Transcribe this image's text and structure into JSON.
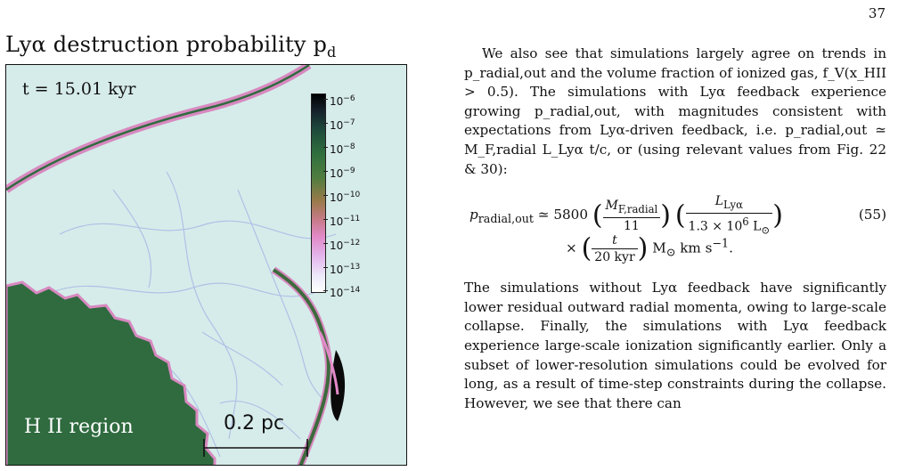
{
  "page": {
    "number": "37"
  },
  "figure": {
    "title": "Lyα destruction probability p",
    "title_subscript": "d",
    "time_label": "t = 15.01 kyr",
    "region_label": "H II region",
    "scale_bar_label": "0.2 pc",
    "colorbar": {
      "base": "10",
      "exponents": [
        "−6",
        "−7",
        "−8",
        "−9",
        "−10",
        "−11",
        "−12",
        "−13",
        "−14"
      ]
    },
    "colors": {
      "background": "#d6ecea",
      "hii_region": "#2f6b3f",
      "shell_pink": "#d889c0",
      "filaments": "#a7b6e6",
      "dense_clump": "#0a0a0a"
    }
  },
  "text": {
    "para1": "We also see that simulations largely agree on trends in p_radial,out and the volume fraction of ionized gas, f_V(x_HII > 0.5). The simulations with Lyα feedback experience growing p_radial,out, with magnitudes consistent with expectations from Lyα-driven feedback, i.e. p_radial,out ≃ M_F,radial L_Lyα t/c, or (using relevant values from Fig. 22 & 30):",
    "eq": {
      "lhs": "p",
      "lhs_sub": "radial,out",
      "rel": "≃",
      "coef": "5800",
      "f1_num": "M",
      "f1_num_sub": "F,radial",
      "f1_den": "11",
      "f2_num": "L",
      "f2_num_sub": "Lyα",
      "f2_den": "1.3 × 10",
      "f2_den_exp": "6",
      "f2_den_unit": "L",
      "f2_den_unit_sub": "⊙",
      "times": "×",
      "f3_num": "t",
      "f3_den": "20 kyr",
      "units": "M",
      "units_sub": "⊙",
      "units_rest": "km s",
      "units_exp": "−1",
      "period": ".",
      "number": "(55)"
    },
    "para2": "The simulations without Lyα feedback have significantly lower residual outward radial momenta, owing to large-scale collapse. Finally, the simulations with Lyα feedback experience large-scale ionization significantly earlier. Only a subset of lower-resolution simulations could be evolved for long, as a result of time-step constraints during the collapse. However, we see that there can"
  }
}
